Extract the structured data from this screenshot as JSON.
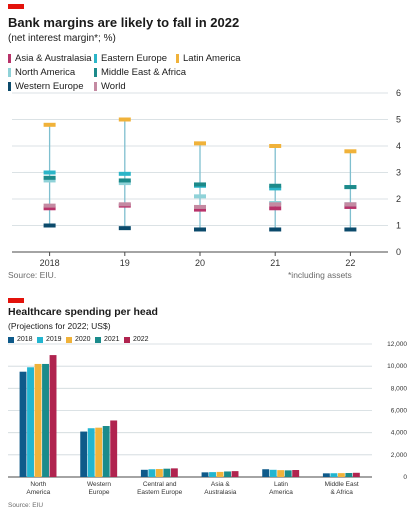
{
  "chart_data": [
    {
      "type": "range",
      "title": "Bank margins are likely to fall in 2022",
      "subtitle": "(net interest margin*; %)",
      "categories": [
        "2018",
        "19",
        "20",
        "21",
        "22"
      ],
      "ylim": [
        0,
        6
      ],
      "y_ticks": [
        "0",
        "1",
        "2",
        "3",
        "4",
        "5",
        "6"
      ],
      "y_axis_side": "right",
      "grid": true,
      "legend_position": "top-left",
      "series": [
        {
          "name": "Asia & Australasia",
          "color": "#b8336a",
          "values": [
            1.65,
            1.75,
            1.6,
            1.65,
            1.7
          ]
        },
        {
          "name": "Eastern Europe",
          "color": "#2bb5c8",
          "values": [
            3.0,
            2.95,
            2.5,
            2.4,
            2.45
          ]
        },
        {
          "name": "Latin America",
          "color": "#f0b23a",
          "values": [
            4.8,
            5.0,
            4.1,
            4.0,
            3.8
          ]
        },
        {
          "name": "North America",
          "color": "#8fd2d8",
          "values": [
            2.7,
            2.6,
            2.1,
            1.85,
            1.8
          ]
        },
        {
          "name": "Middle East & Africa",
          "color": "#1d8a8a",
          "values": [
            2.8,
            2.7,
            2.55,
            2.5,
            2.45
          ]
        },
        {
          "name": "Western Europe",
          "color": "#0b4a6b",
          "values": [
            1.0,
            0.9,
            0.85,
            0.85,
            0.85
          ]
        },
        {
          "name": "World",
          "color": "#c48aa2",
          "values": [
            1.75,
            1.8,
            1.7,
            1.8,
            1.8
          ]
        }
      ],
      "source": "Source: EIU.",
      "footnote": "*including assets"
    },
    {
      "type": "bar",
      "title": "Healthcare spending per head",
      "subtitle": "(Projections for 2022; US$)",
      "categories": [
        [
          "North",
          "America"
        ],
        [
          "Western",
          "Europe"
        ],
        [
          "Central and",
          "Eastern Europe"
        ],
        [
          "Asia &",
          "Australasia"
        ],
        [
          "Latin",
          "America"
        ],
        [
          "Middle East",
          "& Africa"
        ]
      ],
      "ylim": [
        0,
        12000
      ],
      "y_ticks": [
        "0",
        "2,000",
        "4,000",
        "6,000",
        "8,000",
        "10,000",
        "12,000"
      ],
      "y_axis_side": "right",
      "grid": true,
      "legend_position": "top-left",
      "series": [
        {
          "name": "2018",
          "color": "#0e5a8a",
          "values": [
            9500,
            4100,
            650,
            420,
            700,
            330
          ]
        },
        {
          "name": "2019",
          "color": "#22b5d0",
          "values": [
            9900,
            4400,
            700,
            440,
            650,
            340
          ]
        },
        {
          "name": "2020",
          "color": "#f0b23a",
          "values": [
            10200,
            4450,
            720,
            460,
            620,
            350
          ]
        },
        {
          "name": "2021",
          "color": "#1a8b8b",
          "values": [
            10200,
            4600,
            750,
            500,
            600,
            360
          ]
        },
        {
          "name": "2022",
          "color": "#b0244f",
          "values": [
            11000,
            5100,
            780,
            530,
            630,
            380
          ]
        }
      ],
      "source": "Source: EIU"
    }
  ]
}
